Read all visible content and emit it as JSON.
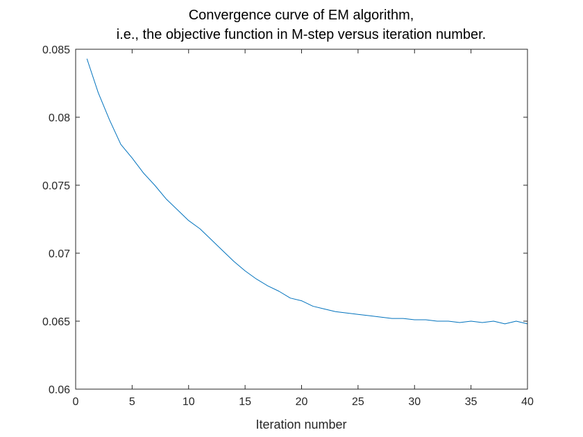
{
  "chart_data": {
    "type": "line",
    "title_lines": [
      "Convergence curve of EM algorithm,",
      "i.e., the objective function in M-step versus iteration number."
    ],
    "xlabel": "Iteration number",
    "ylabel": "",
    "xlim": [
      0,
      40
    ],
    "ylim": [
      0.06,
      0.085
    ],
    "x_ticks": [
      "0",
      "5",
      "10",
      "15",
      "20",
      "25",
      "30",
      "35",
      "40"
    ],
    "y_ticks": [
      "0.06",
      "0.065",
      "0.07",
      "0.075",
      "0.08",
      "0.085"
    ],
    "grid": false,
    "legend": "none",
    "colors": {
      "line": "#0072bd",
      "axes": "#262626"
    },
    "series": [
      {
        "x": [
          1,
          2,
          3,
          4,
          5,
          6,
          7,
          8,
          9,
          10,
          11,
          12,
          13,
          14,
          15,
          16,
          17,
          18,
          19,
          20,
          21,
          22,
          23,
          24,
          25,
          26,
          27,
          28,
          29,
          30,
          31,
          32,
          33,
          34,
          35,
          36,
          37,
          38,
          39,
          40
        ],
        "values": [
          0.0843,
          0.0818,
          0.0798,
          0.078,
          0.077,
          0.0759,
          0.075,
          0.074,
          0.0732,
          0.0724,
          0.0718,
          0.071,
          0.0702,
          0.0694,
          0.0687,
          0.0681,
          0.0676,
          0.0672,
          0.0667,
          0.0665,
          0.0661,
          0.0659,
          0.0657,
          0.0656,
          0.0655,
          0.0654,
          0.0653,
          0.0652,
          0.0652,
          0.0651,
          0.0651,
          0.065,
          0.065,
          0.0649,
          0.065,
          0.0649,
          0.065,
          0.0648,
          0.065,
          0.0648
        ]
      }
    ]
  }
}
